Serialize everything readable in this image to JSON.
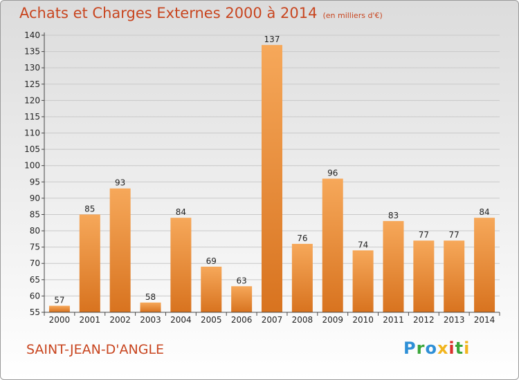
{
  "header": {
    "title": "Achats et Charges Externes 2000 à 2014",
    "subtitle": "(en milliers d'€)"
  },
  "footer": {
    "place": "SAINT-JEAN-D'ANGLE",
    "logo": {
      "letters": [
        "P",
        "r",
        "o",
        "x",
        "i",
        "t",
        "i"
      ],
      "colors": [
        "#2e8fd6",
        "#3aa63a",
        "#2e8fd6",
        "#f2b51e",
        "#d9302b",
        "#3aa63a",
        "#f2b51e"
      ]
    }
  },
  "colors": {
    "bar_light": "#f6a85a",
    "bar_dark": "#d8731f",
    "axis": "#444444",
    "grid": "#c8c8c8"
  },
  "chart_data": {
    "type": "bar",
    "title": "Achats et Charges Externes 2000 à 2014",
    "subtitle": "(en milliers d'€)",
    "xlabel": "",
    "ylabel": "",
    "categories": [
      "2000",
      "2001",
      "2002",
      "2003",
      "2004",
      "2005",
      "2006",
      "2007",
      "2008",
      "2009",
      "2010",
      "2011",
      "2012",
      "2013",
      "2014"
    ],
    "values": [
      57,
      85,
      93,
      58,
      84,
      69,
      63,
      137,
      76,
      96,
      74,
      83,
      77,
      77,
      84
    ],
    "ylim": [
      55,
      140
    ],
    "yticks": [
      55,
      60,
      65,
      70,
      75,
      80,
      85,
      90,
      95,
      100,
      105,
      110,
      115,
      120,
      125,
      130,
      135,
      140
    ],
    "grid": true
  }
}
